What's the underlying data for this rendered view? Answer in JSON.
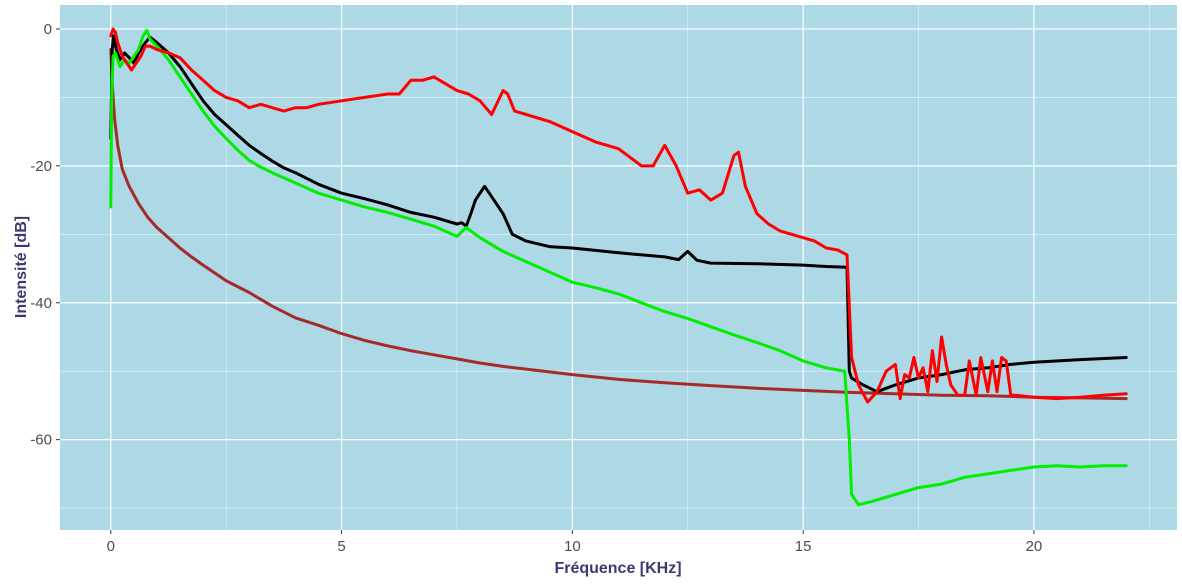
{
  "chart_data": {
    "type": "line",
    "title": "",
    "xlabel": "Fréquence [KHz]",
    "ylabel": "Intensité [dB]",
    "xlim": [
      -1.1,
      23.1
    ],
    "ylim": [
      -73.2,
      3.5
    ],
    "x_ticks": [
      0,
      5,
      10,
      15,
      20
    ],
    "y_ticks": [
      0,
      -20,
      -40,
      -60
    ],
    "x_tick_labels": [
      "0",
      "5",
      "10",
      "15",
      "20"
    ],
    "y_tick_labels": [
      "0",
      "-20",
      "-40",
      "-60"
    ],
    "grid": true,
    "legend": "none",
    "colors": {
      "panel_background": "#add8e6",
      "grid_major": "#ffffff",
      "tick_label": "#4d4d4d",
      "axis_title": "#3a3a6e"
    },
    "series": [
      {
        "color": "#a52a2a",
        "x": [
          0,
          0.03,
          0.08,
          0.15,
          0.25,
          0.4,
          0.6,
          0.8,
          1.0,
          1.25,
          1.5,
          1.75,
          2.0,
          2.5,
          3.0,
          3.5,
          4.0,
          4.5,
          5.0,
          5.5,
          6.0,
          6.5,
          7.0,
          7.5,
          8.0,
          8.5,
          9.0,
          9.5,
          10.0,
          11.0,
          12.0,
          13.0,
          14.0,
          15.0,
          16.0,
          17.0,
          18.0,
          19.0,
          20.0,
          21.0,
          22.0
        ],
        "y": [
          -3,
          -8,
          -13,
          -17,
          -20.5,
          -23,
          -25.5,
          -27.5,
          -29,
          -30.5,
          -32,
          -33.3,
          -34.5,
          -36.8,
          -38.5,
          -40.5,
          -42.2,
          -43.3,
          -44.5,
          -45.5,
          -46.3,
          -47,
          -47.6,
          -48.2,
          -48.8,
          -49.3,
          -49.7,
          -50.1,
          -50.5,
          -51.2,
          -51.7,
          -52.1,
          -52.5,
          -52.8,
          -53.1,
          -53.3,
          -53.5,
          -53.6,
          -53.8,
          -53.9,
          -54
        ]
      },
      {
        "color": "#000000",
        "x": [
          0,
          0.03,
          0.06,
          0.12,
          0.2,
          0.3,
          0.4,
          0.5,
          0.6,
          0.75,
          0.85,
          1.0,
          1.25,
          1.5,
          1.75,
          2.0,
          2.25,
          2.5,
          2.75,
          3.0,
          3.25,
          3.5,
          3.75,
          4.0,
          4.5,
          5.0,
          5.5,
          6.0,
          6.5,
          7.0,
          7.5,
          7.6,
          7.7,
          7.8,
          7.9,
          8.0,
          8.1,
          8.2,
          8.3,
          8.4,
          8.5,
          8.6,
          8.7,
          9.0,
          9.5,
          10.0,
          11.0,
          12.0,
          12.3,
          12.5,
          12.7,
          13.0,
          14.0,
          15.0,
          15.5,
          15.95,
          16.0,
          16.05,
          16.3,
          16.6,
          17.0,
          17.5,
          18.0,
          18.5,
          19.0,
          19.5,
          20.0,
          21.0,
          22.0
        ],
        "y": [
          -16,
          -3,
          -1,
          -3,
          -4.5,
          -3.5,
          -4.2,
          -5,
          -3.5,
          -2,
          -1.2,
          -2,
          -3.5,
          -5.5,
          -8,
          -10.5,
          -12.5,
          -14,
          -15.5,
          -17,
          -18.2,
          -19.3,
          -20.3,
          -21,
          -22.7,
          -24,
          -24.8,
          -25.7,
          -26.8,
          -27.5,
          -28.5,
          -28.3,
          -28.8,
          -27,
          -25,
          -24,
          -23,
          -24,
          -25,
          -26,
          -27,
          -28.5,
          -30,
          -31,
          -31.8,
          -32,
          -32.7,
          -33.3,
          -33.7,
          -32.5,
          -33.8,
          -34.2,
          -34.3,
          -34.5,
          -34.7,
          -34.8,
          -50,
          -51,
          -52,
          -53,
          -52,
          -51,
          -50.5,
          -49.8,
          -49.5,
          -49,
          -48.7,
          -48.3,
          -48
        ]
      },
      {
        "color": "#00ee00",
        "x": [
          0,
          0.02,
          0.05,
          0.1,
          0.15,
          0.2,
          0.3,
          0.4,
          0.5,
          0.6,
          0.7,
          0.78,
          0.85,
          1.0,
          1.25,
          1.5,
          1.75,
          2.0,
          2.25,
          2.5,
          2.75,
          3.0,
          3.25,
          3.5,
          4.0,
          4.5,
          5.0,
          5.5,
          6.0,
          6.5,
          7.0,
          7.5,
          7.7,
          8.0,
          8.5,
          9.0,
          9.5,
          10.0,
          10.5,
          11.0,
          11.5,
          12.0,
          12.5,
          13.0,
          13.5,
          14.0,
          14.5,
          15.0,
          15.5,
          15.9,
          16.0,
          16.05,
          16.2,
          16.5,
          17.0,
          17.5,
          18.0,
          18.5,
          19.0,
          19.5,
          20.0,
          20.5,
          21.0,
          21.5,
          22.0
        ],
        "y": [
          -26,
          -10,
          -4,
          -3.5,
          -4.5,
          -5.5,
          -4.5,
          -5,
          -4,
          -3,
          -1,
          -0.2,
          -1.5,
          -2.5,
          -4.5,
          -7,
          -9.5,
          -12,
          -14.2,
          -16,
          -17.7,
          -19.2,
          -20.2,
          -21,
          -22.5,
          -24,
          -25,
          -26,
          -26.8,
          -27.8,
          -28.8,
          -30.3,
          -29,
          -30.5,
          -32.5,
          -34,
          -35.5,
          -37,
          -37.8,
          -38.7,
          -40,
          -41.3,
          -42.3,
          -43.5,
          -44.7,
          -45.8,
          -47,
          -48.5,
          -49.5,
          -50,
          -60,
          -68,
          -69.5,
          -69,
          -68,
          -67,
          -66.5,
          -65.5,
          -65,
          -64.5,
          -64,
          -63.8,
          -64,
          -63.8,
          -63.8
        ]
      },
      {
        "color": "#ff0000",
        "x": [
          0,
          0.05,
          0.1,
          0.15,
          0.25,
          0.35,
          0.45,
          0.55,
          0.65,
          0.75,
          0.85,
          1.0,
          1.25,
          1.5,
          1.75,
          2.0,
          2.25,
          2.5,
          2.75,
          3.0,
          3.25,
          3.5,
          3.75,
          4.0,
          4.25,
          4.5,
          5.0,
          5.5,
          6.0,
          6.25,
          6.5,
          6.75,
          7.0,
          7.25,
          7.5,
          7.75,
          8.0,
          8.25,
          8.5,
          8.6,
          8.75,
          9.0,
          9.5,
          10.0,
          10.5,
          11.0,
          11.5,
          11.75,
          12.0,
          12.25,
          12.5,
          12.75,
          13.0,
          13.25,
          13.5,
          13.6,
          13.75,
          14.0,
          14.25,
          14.5,
          14.75,
          15.0,
          15.25,
          15.5,
          15.75,
          15.95,
          16.05,
          16.2,
          16.4,
          16.6,
          16.8,
          17.0,
          17.1,
          17.2,
          17.3,
          17.4,
          17.5,
          17.6,
          17.7,
          17.8,
          17.9,
          18.0,
          18.1,
          18.2,
          18.35,
          18.5,
          18.6,
          18.75,
          18.85,
          19.0,
          19.1,
          19.2,
          19.3,
          19.4,
          19.5,
          19.6,
          20.0,
          20.5,
          21.0,
          21.5,
          22.0
        ],
        "y": [
          -1,
          0,
          -0.5,
          -2,
          -4,
          -5,
          -6,
          -5,
          -4,
          -2.5,
          -2.5,
          -3,
          -3.5,
          -4.2,
          -6,
          -7.5,
          -9,
          -10,
          -10.5,
          -11.5,
          -11,
          -11.5,
          -12,
          -11.5,
          -11.5,
          -11,
          -10.5,
          -10,
          -9.5,
          -9.5,
          -7.5,
          -7.5,
          -7,
          -8,
          -9,
          -9.5,
          -10.5,
          -12.5,
          -9,
          -9.5,
          -12,
          -12.5,
          -13.5,
          -15,
          -16.5,
          -17.5,
          -20,
          -20,
          -17,
          -20,
          -24,
          -23.5,
          -25,
          -24,
          -18.5,
          -18,
          -23,
          -27,
          -28.5,
          -29.5,
          -30,
          -30.5,
          -31,
          -32,
          -32.3,
          -33,
          -48,
          -52,
          -54.5,
          -53,
          -50,
          -49,
          -54,
          -50.5,
          -51,
          -48,
          -51,
          -49.5,
          -53,
          -47,
          -51.5,
          -45,
          -49,
          -52,
          -53.5,
          -53.5,
          -48.5,
          -53.5,
          -48,
          -53,
          -48.5,
          -53,
          -48,
          -48.5,
          -53.5,
          -53.5,
          -53.8,
          -54,
          -53.8,
          -53.5,
          -53.3
        ]
      }
    ]
  }
}
